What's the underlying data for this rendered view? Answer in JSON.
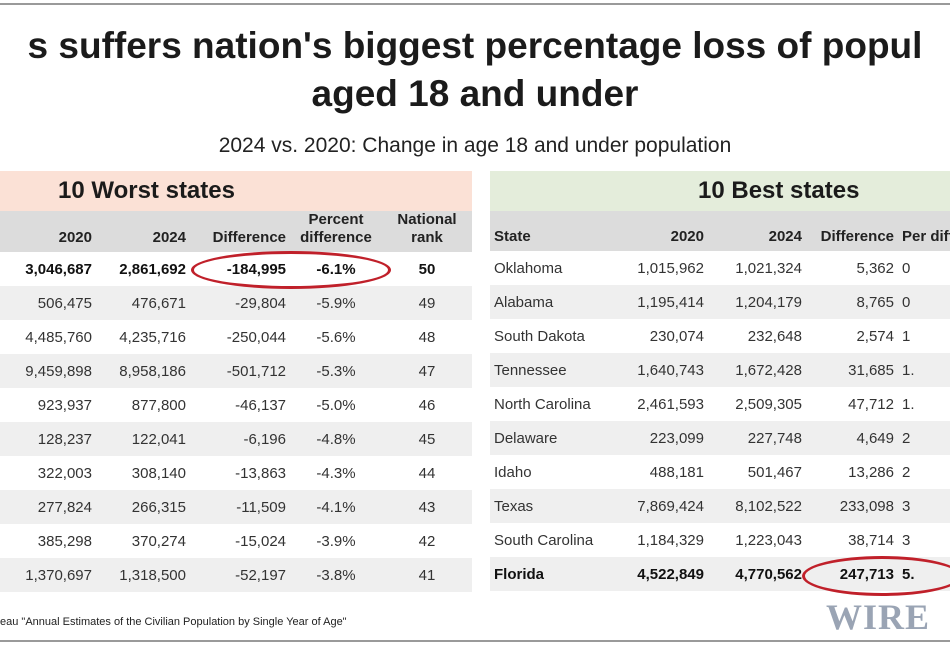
{
  "title_line1": "s suffers nation's biggest percentage loss of popul",
  "title_line2": "aged 18 and under",
  "subtitle": "2024 vs. 2020: Change in age 18 and under population",
  "worst": {
    "heading": "10 Worst states",
    "columns": [
      "2020",
      "2024",
      "Difference",
      "Percent difference",
      "National rank"
    ],
    "rows": [
      [
        "3,046,687",
        "2,861,692",
        "-184,995",
        "-6.1%",
        "50"
      ],
      [
        "506,475",
        "476,671",
        "-29,804",
        "-5.9%",
        "49"
      ],
      [
        "4,485,760",
        "4,235,716",
        "-250,044",
        "-5.6%",
        "48"
      ],
      [
        "9,459,898",
        "8,958,186",
        "-501,712",
        "-5.3%",
        "47"
      ],
      [
        "923,937",
        "877,800",
        "-46,137",
        "-5.0%",
        "46"
      ],
      [
        "128,237",
        "122,041",
        "-6,196",
        "-4.8%",
        "45"
      ],
      [
        "322,003",
        "308,140",
        "-13,863",
        "-4.3%",
        "44"
      ],
      [
        "277,824",
        "266,315",
        "-11,509",
        "-4.1%",
        "43"
      ],
      [
        "385,298",
        "370,274",
        "-15,024",
        "-3.9%",
        "42"
      ],
      [
        "1,370,697",
        "1,318,500",
        "-52,197",
        "-3.8%",
        "41"
      ]
    ]
  },
  "best": {
    "heading": "10 Best states",
    "columns": [
      "State",
      "2020",
      "2024",
      "Difference",
      "Per diffe"
    ],
    "rows": [
      [
        "Oklahoma",
        "1,015,962",
        "1,021,324",
        "5,362",
        "0"
      ],
      [
        "Alabama",
        "1,195,414",
        "1,204,179",
        "8,765",
        "0"
      ],
      [
        "South Dakota",
        "230,074",
        "232,648",
        "2,574",
        "1"
      ],
      [
        "Tennessee",
        "1,640,743",
        "1,672,428",
        "31,685",
        "1."
      ],
      [
        "North Carolina",
        "2,461,593",
        "2,509,305",
        "47,712",
        "1."
      ],
      [
        "Delaware",
        "223,099",
        "227,748",
        "4,649",
        "2"
      ],
      [
        "Idaho",
        "488,181",
        "501,467",
        "13,286",
        "2"
      ],
      [
        "Texas",
        "7,869,424",
        "8,102,522",
        "233,098",
        "3"
      ],
      [
        "South Carolina",
        "1,184,329",
        "1,223,043",
        "38,714",
        "3"
      ],
      [
        "Florida",
        "4,522,849",
        "4,770,562",
        "247,713",
        "5."
      ]
    ]
  },
  "source": "eau \"Annual Estimates of the Civilian Population by Single Year of Age\"",
  "logo": "WIRE",
  "colors": {
    "worst_header_bg": "#fbe1d6",
    "best_header_bg": "#e4eddb",
    "highlight_ring": "#c0202a"
  }
}
